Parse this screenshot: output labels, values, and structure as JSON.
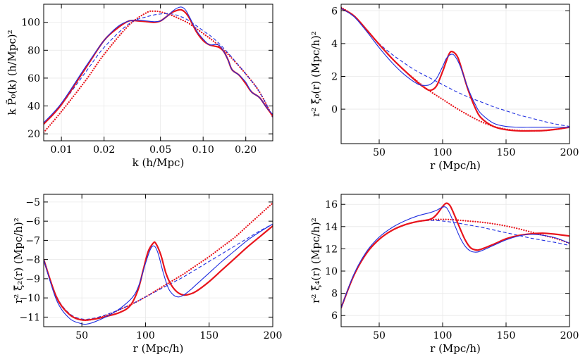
{
  "colors": {
    "red": "#e8141c",
    "blue": "#1f2ee0"
  },
  "chart_data": [
    {
      "type": "line",
      "id": "pk",
      "xscale": "log",
      "xlim": [
        0.0075,
        0.31
      ],
      "ylim": [
        15,
        113
      ],
      "xticks": [
        0.01,
        0.02,
        0.05,
        0.1,
        0.2
      ],
      "xtick_labels": [
        "0.01",
        "0.02",
        "0.05",
        "0.10",
        "0.20"
      ],
      "yticks": [
        20,
        40,
        60,
        80,
        100
      ],
      "ytick_labels": [
        "20",
        "40",
        "60",
        "80",
        "100"
      ],
      "xlabel": "k (h/Mpc)",
      "ylabel": "k P̃₀(k) (h/Mpc)²",
      "series": [
        {
          "name": "red-dotted",
          "color": "red",
          "style": "dotted",
          "width": 2.2,
          "x": [
            0.0075,
            0.01,
            0.015,
            0.02,
            0.03,
            0.04,
            0.045,
            0.05,
            0.06,
            0.07,
            0.08,
            0.1,
            0.12,
            0.15,
            0.2,
            0.25,
            0.31
          ],
          "y": [
            21,
            36,
            59,
            77,
            98,
            107,
            108,
            107.5,
            105,
            102,
            99,
            92,
            86,
            77,
            63,
            50,
            32
          ]
        },
        {
          "name": "blue-dashed",
          "color": "blue",
          "style": "dashed",
          "width": 1.1,
          "x": [
            0.0075,
            0.01,
            0.015,
            0.02,
            0.03,
            0.04,
            0.05,
            0.06,
            0.07,
            0.08,
            0.1,
            0.12,
            0.15,
            0.2,
            0.25,
            0.31
          ],
          "y": [
            27,
            41,
            65,
            82,
            99,
            104,
            106,
            106,
            104,
            101,
            94,
            88,
            78,
            63,
            50,
            32
          ]
        },
        {
          "name": "red-solid",
          "color": "red",
          "style": "solid",
          "width": 2.2,
          "x": [
            0.0075,
            0.01,
            0.015,
            0.02,
            0.025,
            0.03,
            0.035,
            0.04,
            0.045,
            0.05,
            0.055,
            0.06,
            0.065,
            0.07,
            0.075,
            0.08,
            0.09,
            0.1,
            0.11,
            0.12,
            0.13,
            0.14,
            0.15,
            0.16,
            0.18,
            0.2,
            0.22,
            0.25,
            0.28,
            0.31
          ],
          "y": [
            27,
            41,
            68,
            87,
            96,
            101,
            101,
            100.5,
            100,
            101,
            104,
            107,
            108.5,
            109,
            107,
            103,
            93,
            87,
            84,
            83,
            82,
            79,
            73,
            66,
            62,
            56,
            50,
            46,
            39,
            33
          ]
        },
        {
          "name": "blue-solid",
          "color": "blue",
          "style": "solid",
          "width": 1.1,
          "x": [
            0.0075,
            0.01,
            0.015,
            0.02,
            0.025,
            0.03,
            0.035,
            0.04,
            0.045,
            0.05,
            0.055,
            0.06,
            0.065,
            0.07,
            0.075,
            0.08,
            0.09,
            0.1,
            0.11,
            0.12,
            0.13,
            0.14,
            0.15,
            0.16,
            0.18,
            0.2,
            0.22,
            0.25,
            0.28,
            0.31
          ],
          "y": [
            28,
            42,
            69,
            87,
            97,
            101,
            101.5,
            101,
            100.5,
            101,
            104,
            107.5,
            110,
            111,
            109,
            104,
            94,
            88,
            84,
            84,
            83.5,
            79,
            73,
            66,
            62,
            57,
            50,
            46,
            39,
            34
          ]
        }
      ]
    },
    {
      "type": "line",
      "id": "xi0",
      "xscale": "linear",
      "xlim": [
        20,
        200
      ],
      "ylim": [
        -2.1,
        6.4
      ],
      "xticks": [
        50,
        100,
        150,
        200
      ],
      "xtick_labels": [
        "50",
        "100",
        "150",
        "200"
      ],
      "yticks": [
        0,
        2,
        4,
        6
      ],
      "ytick_labels": [
        "0",
        "2",
        "4",
        "6"
      ],
      "xlabel": "r (Mpc/h)",
      "ylabel": "r² ξ̃₀(r) (Mpc/h)²",
      "series": [
        {
          "name": "red-dotted",
          "color": "red",
          "style": "dotted",
          "width": 2.2,
          "x": [
            20,
            30,
            40,
            50,
            60,
            70,
            80,
            90,
            100,
            110,
            120,
            130,
            140,
            150,
            160,
            170,
            180,
            190,
            200
          ],
          "y": [
            6.2,
            5.7,
            4.85,
            3.95,
            3.1,
            2.35,
            1.7,
            1.1,
            0.6,
            0.1,
            -0.35,
            -0.75,
            -1.05,
            -1.22,
            -1.3,
            -1.32,
            -1.3,
            -1.22,
            -1.1
          ]
        },
        {
          "name": "blue-dashed",
          "color": "blue",
          "style": "dashed",
          "width": 1.1,
          "x": [
            20,
            30,
            40,
            50,
            60,
            70,
            80,
            90,
            100,
            110,
            120,
            130,
            140,
            150,
            160,
            170,
            180,
            190,
            200
          ],
          "y": [
            6.15,
            5.65,
            4.8,
            4.0,
            3.35,
            2.8,
            2.3,
            1.9,
            1.5,
            1.1,
            0.75,
            0.45,
            0.15,
            -0.1,
            -0.35,
            -0.55,
            -0.75,
            -0.92,
            -1.05
          ]
        },
        {
          "name": "red-solid",
          "color": "red",
          "style": "solid",
          "width": 2.2,
          "x": [
            20,
            30,
            40,
            50,
            60,
            70,
            80,
            85,
            90,
            95,
            100,
            105,
            108,
            112,
            116,
            120,
            125,
            130,
            140,
            150,
            160,
            170,
            180,
            190,
            200
          ],
          "y": [
            6.15,
            5.7,
            4.85,
            3.95,
            3.1,
            2.35,
            1.65,
            1.35,
            1.15,
            1.4,
            2.3,
            3.35,
            3.5,
            3.15,
            2.2,
            1.2,
            0.2,
            -0.5,
            -1.05,
            -1.25,
            -1.32,
            -1.32,
            -1.3,
            -1.22,
            -1.1
          ]
        },
        {
          "name": "blue-solid",
          "color": "blue",
          "style": "solid",
          "width": 1.1,
          "x": [
            20,
            30,
            40,
            50,
            60,
            70,
            80,
            85,
            90,
            95,
            100,
            103,
            107,
            110,
            114,
            118,
            122,
            126,
            130,
            140,
            150,
            160,
            170,
            180,
            190,
            200
          ],
          "y": [
            6.15,
            5.65,
            4.75,
            3.75,
            2.85,
            2.1,
            1.55,
            1.45,
            1.5,
            1.85,
            2.6,
            3.1,
            3.35,
            3.2,
            2.6,
            1.7,
            0.9,
            0.25,
            -0.25,
            -0.85,
            -1.05,
            -1.1,
            -1.1,
            -1.1,
            -1.1,
            -1.1
          ]
        }
      ]
    },
    {
      "type": "line",
      "id": "xi2",
      "xscale": "linear",
      "xlim": [
        20,
        200
      ],
      "ylim": [
        -11.5,
        -4.6
      ],
      "xticks": [
        50,
        100,
        150,
        200
      ],
      "xtick_labels": [
        "50",
        "100",
        "150",
        "200"
      ],
      "yticks": [
        -11,
        -10,
        -9,
        -8,
        -7,
        -6,
        -5
      ],
      "ytick_labels": [
        "−11",
        "−10",
        "−9",
        "−8",
        "−7",
        "−6",
        "−5"
      ],
      "xlabel": "r (Mpc/h)",
      "ylabel": "r² ξ̃₂(r) (Mpc/h)²",
      "series": [
        {
          "name": "red-dotted",
          "color": "red",
          "style": "dotted",
          "width": 2.2,
          "x": [
            20,
            30,
            40,
            50,
            60,
            70,
            80,
            90,
            100,
            110,
            120,
            130,
            140,
            150,
            160,
            170,
            180,
            190,
            200
          ],
          "y": [
            -8.0,
            -9.95,
            -10.85,
            -11.15,
            -11.1,
            -10.9,
            -10.6,
            -10.3,
            -9.95,
            -9.55,
            -9.15,
            -8.75,
            -8.3,
            -7.85,
            -7.35,
            -6.85,
            -6.25,
            -5.65,
            -5.05
          ]
        },
        {
          "name": "blue-dashed",
          "color": "blue",
          "style": "dashed",
          "width": 1.1,
          "x": [
            20,
            30,
            40,
            50,
            60,
            70,
            80,
            90,
            100,
            110,
            120,
            130,
            140,
            150,
            160,
            170,
            180,
            190,
            200
          ],
          "y": [
            -8.0,
            -9.9,
            -10.8,
            -11.1,
            -11.05,
            -10.85,
            -10.6,
            -10.3,
            -9.95,
            -9.6,
            -9.25,
            -8.9,
            -8.5,
            -8.1,
            -7.7,
            -7.3,
            -6.9,
            -6.5,
            -6.15
          ]
        },
        {
          "name": "red-solid",
          "color": "red",
          "style": "solid",
          "width": 2.2,
          "x": [
            20,
            30,
            40,
            50,
            60,
            70,
            80,
            88,
            94,
            98,
            102,
            106,
            108,
            112,
            116,
            120,
            125,
            130,
            135,
            140,
            150,
            160,
            170,
            180,
            190,
            200
          ],
          "y": [
            -8.0,
            -9.95,
            -10.85,
            -11.15,
            -11.1,
            -10.95,
            -10.75,
            -10.4,
            -9.6,
            -8.6,
            -7.6,
            -7.15,
            -7.15,
            -7.75,
            -8.7,
            -9.3,
            -9.7,
            -9.85,
            -9.8,
            -9.65,
            -9.15,
            -8.55,
            -7.95,
            -7.35,
            -6.8,
            -6.25
          ]
        },
        {
          "name": "blue-solid",
          "color": "blue",
          "style": "solid",
          "width": 1.1,
          "x": [
            20,
            30,
            40,
            50,
            55,
            60,
            70,
            80,
            90,
            95,
            100,
            104,
            107,
            110,
            114,
            118,
            122,
            126,
            130,
            135,
            140,
            150,
            160,
            170,
            180,
            190,
            200
          ],
          "y": [
            -8.0,
            -10.1,
            -11.05,
            -11.35,
            -11.35,
            -11.25,
            -10.95,
            -10.55,
            -9.95,
            -9.3,
            -8.2,
            -7.45,
            -7.3,
            -7.7,
            -8.7,
            -9.5,
            -9.85,
            -9.95,
            -9.85,
            -9.6,
            -9.3,
            -8.7,
            -8.1,
            -7.55,
            -7.0,
            -6.55,
            -6.15
          ]
        }
      ]
    },
    {
      "type": "line",
      "id": "xi4",
      "xscale": "linear",
      "xlim": [
        20,
        200
      ],
      "ylim": [
        5.0,
        16.9
      ],
      "xticks": [
        50,
        100,
        150,
        200
      ],
      "xtick_labels": [
        "50",
        "100",
        "150",
        "200"
      ],
      "yticks": [
        6,
        8,
        10,
        12,
        14,
        16
      ],
      "ytick_labels": [
        "6",
        "8",
        "10",
        "12",
        "14",
        "16"
      ],
      "xlabel": "r (Mpc/h)",
      "ylabel": "r² ξ̃₄(r) (Mpc/h)²",
      "series": [
        {
          "name": "red-dotted",
          "color": "red",
          "style": "dotted",
          "width": 2.2,
          "x": [
            20,
            30,
            40,
            50,
            60,
            70,
            80,
            90,
            100,
            110,
            120,
            130,
            140,
            150,
            160,
            170,
            180,
            190,
            200
          ],
          "y": [
            6.7,
            9.6,
            11.6,
            12.85,
            13.65,
            14.15,
            14.45,
            14.6,
            14.65,
            14.6,
            14.5,
            14.4,
            14.25,
            14.05,
            13.8,
            13.5,
            13.2,
            12.9,
            12.5
          ]
        },
        {
          "name": "blue-dashed",
          "color": "blue",
          "style": "dashed",
          "width": 1.1,
          "x": [
            20,
            30,
            40,
            50,
            60,
            70,
            80,
            90,
            100,
            110,
            120,
            130,
            140,
            150,
            160,
            170,
            180,
            190,
            200
          ],
          "y": [
            6.7,
            9.6,
            11.6,
            12.85,
            13.65,
            14.15,
            14.45,
            14.55,
            14.5,
            14.35,
            14.15,
            13.95,
            13.7,
            13.45,
            13.2,
            12.95,
            12.75,
            12.55,
            12.3
          ]
        },
        {
          "name": "red-solid",
          "color": "red",
          "style": "solid",
          "width": 2.2,
          "x": [
            20,
            30,
            40,
            50,
            60,
            70,
            80,
            90,
            95,
            100,
            103,
            106,
            110,
            114,
            118,
            122,
            126,
            130,
            140,
            150,
            160,
            170,
            180,
            190,
            200
          ],
          "y": [
            6.7,
            9.6,
            11.6,
            12.85,
            13.65,
            14.15,
            14.45,
            14.65,
            15.05,
            15.8,
            16.1,
            15.85,
            14.85,
            13.75,
            12.75,
            12.1,
            11.9,
            11.95,
            12.4,
            12.9,
            13.2,
            13.35,
            13.4,
            13.3,
            13.15
          ]
        },
        {
          "name": "blue-solid",
          "color": "blue",
          "style": "solid",
          "width": 1.1,
          "x": [
            20,
            30,
            40,
            50,
            60,
            70,
            80,
            90,
            95,
            100,
            103,
            106,
            110,
            114,
            118,
            122,
            126,
            130,
            140,
            150,
            160,
            170,
            180,
            190,
            200
          ],
          "y": [
            6.7,
            9.7,
            11.75,
            13.05,
            13.9,
            14.5,
            14.95,
            15.25,
            15.45,
            15.75,
            15.7,
            15.1,
            14.0,
            12.95,
            12.2,
            11.8,
            11.7,
            11.8,
            12.3,
            12.8,
            13.15,
            13.3,
            13.2,
            12.95,
            12.5
          ]
        }
      ]
    }
  ]
}
